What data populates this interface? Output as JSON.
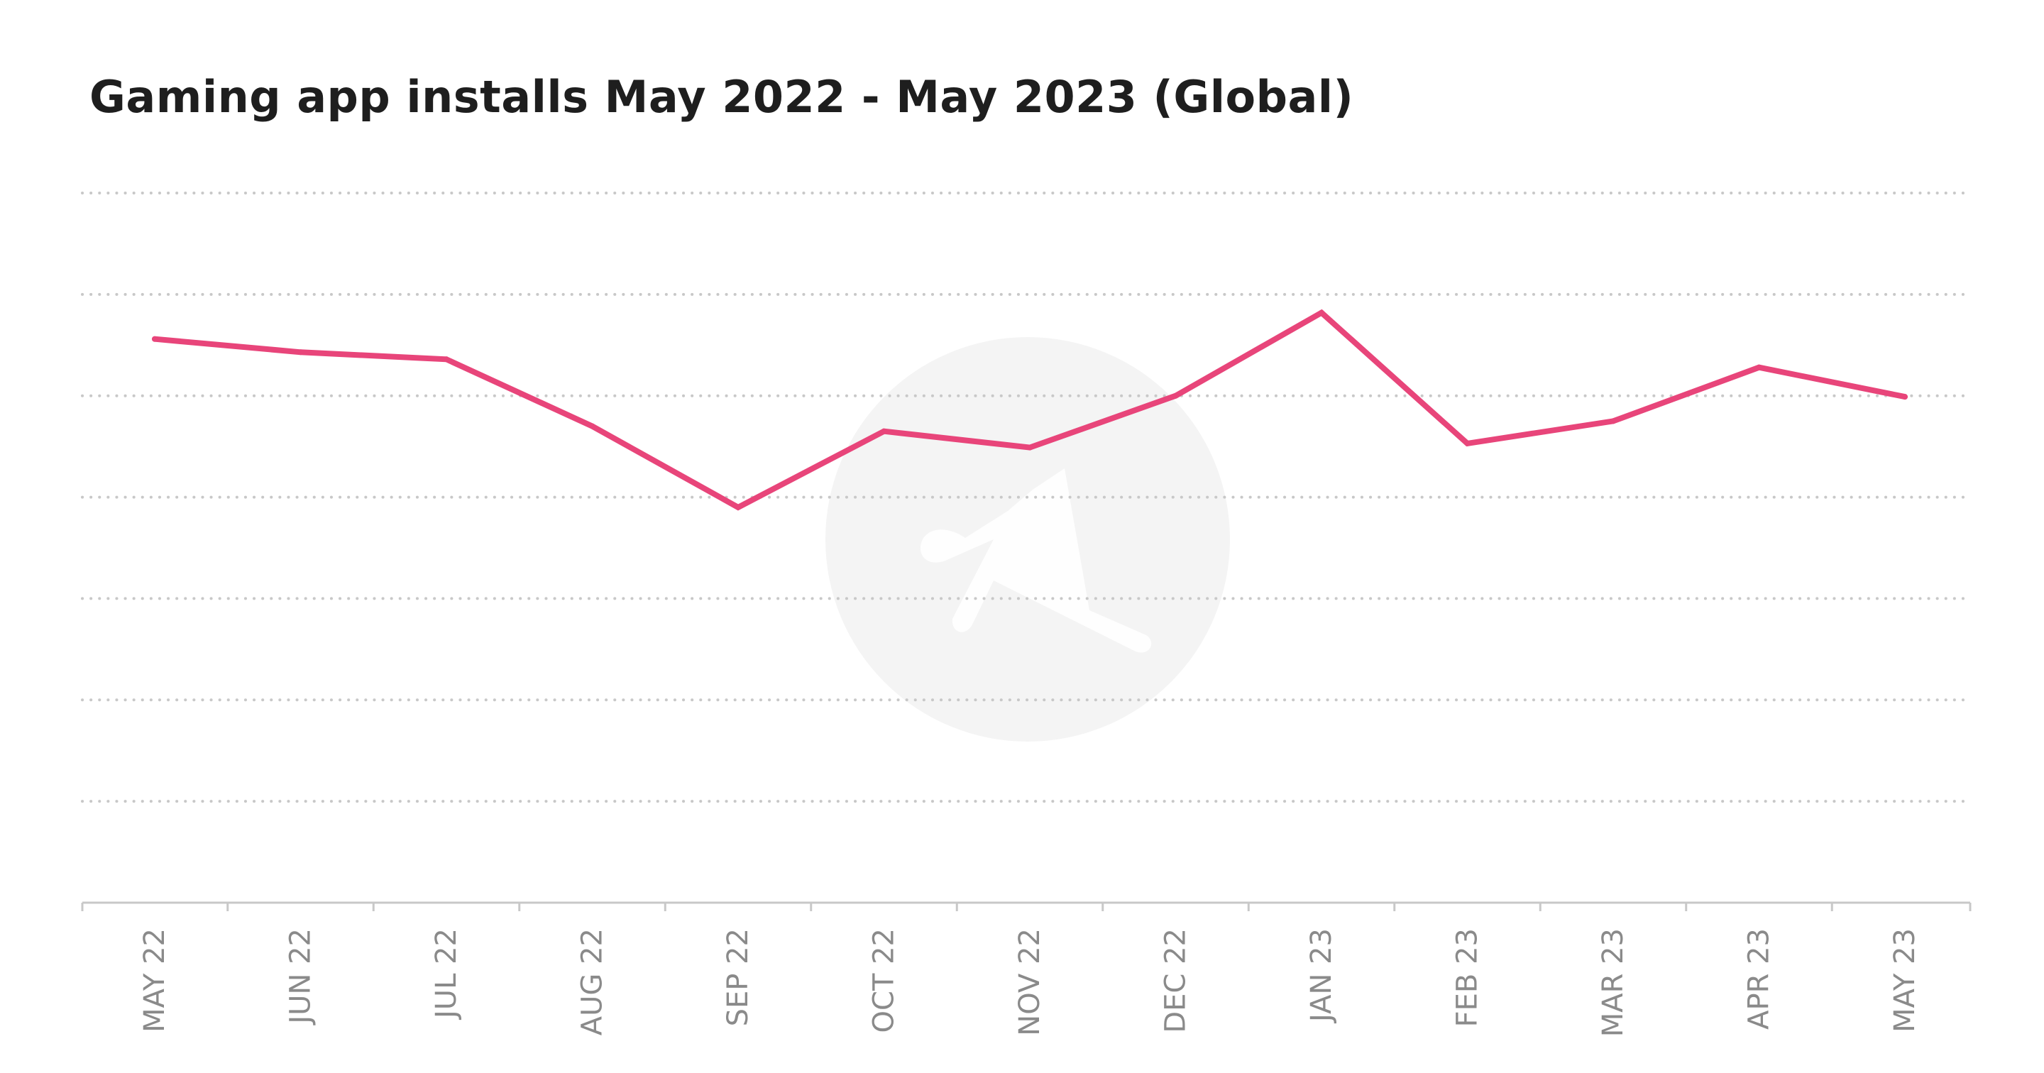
{
  "chart_data": {
    "type": "line",
    "title": "Gaming app installs May 2022 - May 2023 (Global)",
    "xlabel": "",
    "ylabel": "",
    "categories": [
      "MAY 22",
      "JUN 22",
      "JUL 22",
      "AUG 22",
      "SEP 22",
      "OCT 22",
      "NOV 22",
      "DEC 22",
      "JAN 23",
      "FEB 23",
      "MAR 23",
      "APR 23",
      "MAY 23"
    ],
    "series": [
      {
        "values": [
          5.56,
          5.43,
          5.36,
          4.7,
          3.9,
          4.65,
          4.49,
          5.0,
          5.82,
          4.53,
          4.75,
          5.28,
          4.99
        ]
      }
    ],
    "ylim": [
      0,
      7
    ],
    "grid": true,
    "y_tick_labels_shown": false,
    "legend": "none",
    "colors": {
      "line": "#e8457a",
      "grid": "#c8c8c8",
      "axis": "#c8c8c8",
      "tick_label": "#8a8a8a",
      "title": "#1e1e1e",
      "watermark": "#f4f4f4"
    }
  }
}
